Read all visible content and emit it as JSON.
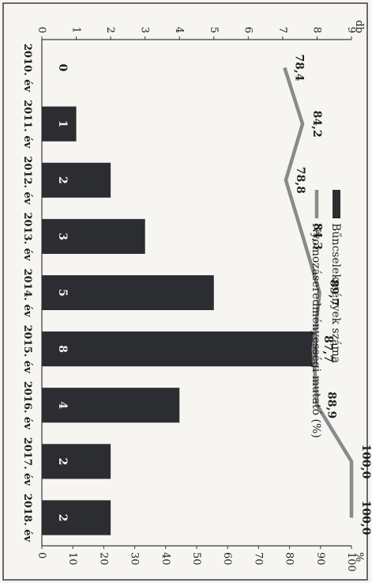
{
  "chart_data": {
    "type": "bar+line",
    "orientation": "rotated-90-clockwise",
    "categories": [
      "2010. év",
      "2011. év",
      "2012. év",
      "2013. év",
      "2014. év",
      "2015. év",
      "2016. év",
      "2017. év",
      "2018. év"
    ],
    "series": [
      {
        "name": "Bűncselekmények száma",
        "type": "bar",
        "axis": "left",
        "values": [
          0,
          1,
          2,
          3,
          5,
          8,
          4,
          2,
          2
        ],
        "color": "#2c2d30"
      },
      {
        "name": "Nyomozáseredményességi mutató (%)",
        "type": "line",
        "axis": "right",
        "values": [
          78.4,
          84.2,
          78.8,
          84.3,
          89.7,
          87.7,
          88.9,
          100.0,
          100.0
        ],
        "color": "#8a8a8e"
      }
    ],
    "bar_value_labels": [
      "0",
      "1",
      "2",
      "3",
      "5",
      "8",
      "4",
      "2",
      "2"
    ],
    "line_value_labels": [
      "78,4",
      "84,2",
      "78,8",
      "84,3",
      "89,7",
      "87,7",
      "88,9",
      "100,0",
      "100,0"
    ],
    "left_axis": {
      "unit_label": "db",
      "range": [
        0,
        9
      ],
      "ticks": [
        "0",
        "1",
        "2",
        "3",
        "4",
        "5",
        "6",
        "7",
        "8",
        "9"
      ]
    },
    "right_axis": {
      "unit_label": "%",
      "range": [
        0,
        100
      ],
      "ticks": [
        "0",
        "10",
        "20",
        "30",
        "40",
        "50",
        "60",
        "70",
        "80",
        "90",
        "100"
      ]
    },
    "legend_position": "top-left",
    "grid": false
  }
}
